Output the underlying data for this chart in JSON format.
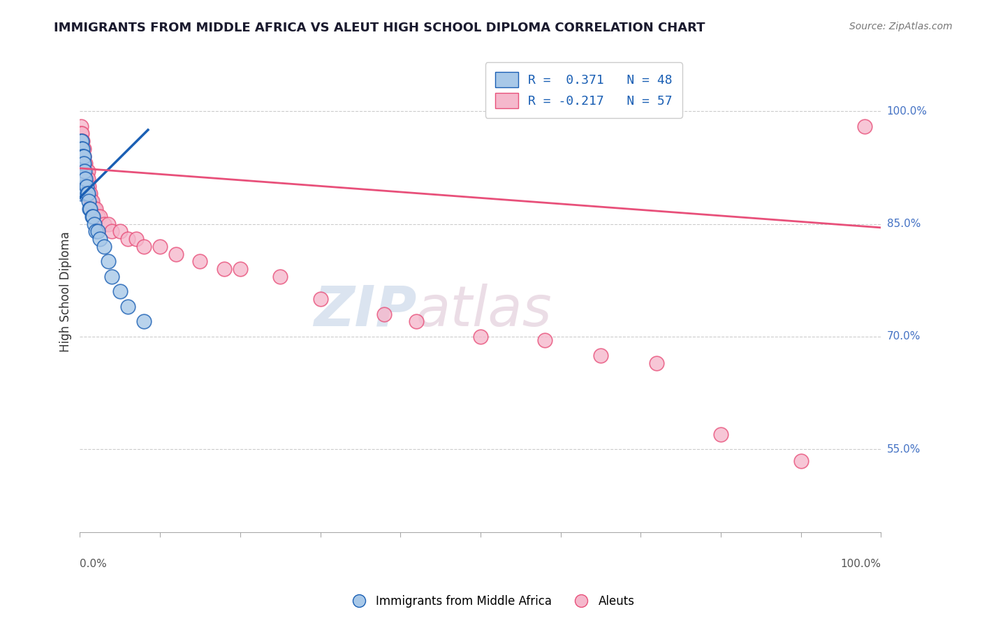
{
  "title": "IMMIGRANTS FROM MIDDLE AFRICA VS ALEUT HIGH SCHOOL DIPLOMA CORRELATION CHART",
  "source_text": "Source: ZipAtlas.com",
  "ylabel": "High School Diploma",
  "ytick_labels": [
    "100.0%",
    "85.0%",
    "70.0%",
    "55.0%"
  ],
  "ytick_values": [
    1.0,
    0.85,
    0.7,
    0.55
  ],
  "xmin": 0.0,
  "xmax": 1.0,
  "ymin": 0.44,
  "ymax": 1.08,
  "legend_r1": "R =  0.371   N = 48",
  "legend_r2": "R = -0.217   N = 57",
  "blue_color": "#a8c8e8",
  "pink_color": "#f5b8cc",
  "blue_line_color": "#1a5fb4",
  "pink_line_color": "#e8507a",
  "watermark_zip": "ZIP",
  "watermark_atlas": "atlas",
  "blue_scatter_x": [
    0.001,
    0.001,
    0.001,
    0.001,
    0.001,
    0.001,
    0.001,
    0.001,
    0.002,
    0.002,
    0.002,
    0.002,
    0.002,
    0.002,
    0.002,
    0.003,
    0.003,
    0.003,
    0.003,
    0.003,
    0.004,
    0.004,
    0.004,
    0.005,
    0.005,
    0.005,
    0.006,
    0.006,
    0.007,
    0.007,
    0.008,
    0.009,
    0.01,
    0.011,
    0.012,
    0.013,
    0.015,
    0.016,
    0.018,
    0.02,
    0.022,
    0.025,
    0.03,
    0.035,
    0.04,
    0.05,
    0.06,
    0.08
  ],
  "blue_scatter_y": [
    0.96,
    0.95,
    0.94,
    0.93,
    0.92,
    0.91,
    0.9,
    0.89,
    0.96,
    0.95,
    0.94,
    0.93,
    0.92,
    0.91,
    0.9,
    0.95,
    0.94,
    0.93,
    0.92,
    0.91,
    0.94,
    0.93,
    0.92,
    0.94,
    0.93,
    0.91,
    0.92,
    0.9,
    0.91,
    0.89,
    0.9,
    0.89,
    0.89,
    0.88,
    0.87,
    0.87,
    0.86,
    0.86,
    0.85,
    0.84,
    0.84,
    0.83,
    0.82,
    0.8,
    0.78,
    0.76,
    0.74,
    0.72
  ],
  "pink_scatter_x": [
    0.001,
    0.001,
    0.002,
    0.002,
    0.002,
    0.003,
    0.003,
    0.003,
    0.004,
    0.004,
    0.004,
    0.005,
    0.005,
    0.005,
    0.006,
    0.006,
    0.007,
    0.007,
    0.008,
    0.008,
    0.009,
    0.01,
    0.01,
    0.01,
    0.011,
    0.012,
    0.013,
    0.014,
    0.015,
    0.016,
    0.018,
    0.02,
    0.022,
    0.025,
    0.03,
    0.035,
    0.04,
    0.05,
    0.06,
    0.07,
    0.08,
    0.1,
    0.12,
    0.15,
    0.18,
    0.2,
    0.25,
    0.3,
    0.38,
    0.42,
    0.5,
    0.58,
    0.65,
    0.72,
    0.8,
    0.9,
    0.98
  ],
  "pink_scatter_y": [
    0.98,
    0.97,
    0.97,
    0.96,
    0.95,
    0.96,
    0.95,
    0.94,
    0.95,
    0.94,
    0.93,
    0.95,
    0.94,
    0.92,
    0.93,
    0.92,
    0.93,
    0.91,
    0.92,
    0.91,
    0.9,
    0.92,
    0.91,
    0.89,
    0.9,
    0.89,
    0.89,
    0.88,
    0.88,
    0.87,
    0.87,
    0.87,
    0.86,
    0.86,
    0.85,
    0.85,
    0.84,
    0.84,
    0.83,
    0.83,
    0.82,
    0.82,
    0.81,
    0.8,
    0.79,
    0.79,
    0.78,
    0.75,
    0.73,
    0.72,
    0.7,
    0.695,
    0.675,
    0.665,
    0.57,
    0.535,
    0.98
  ],
  "blue_regline_x": [
    0.0,
    0.085
  ],
  "blue_regline_y": [
    0.885,
    0.975
  ],
  "pink_regline_x": [
    0.0,
    1.0
  ],
  "pink_regline_y": [
    0.924,
    0.845
  ]
}
